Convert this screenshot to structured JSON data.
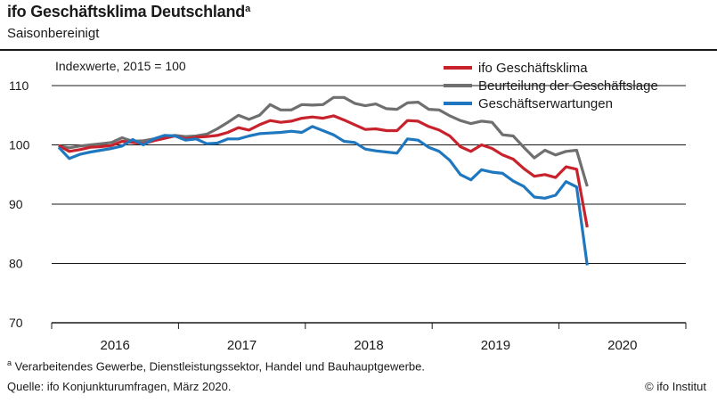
{
  "header": {
    "title": "ifo Geschäftsklima Deutschland",
    "title_sup": "a",
    "subtitle": "Saisonbereinigt"
  },
  "footer": {
    "footnote_sup": "a",
    "footnote": " Verarbeitendes Gewerbe, Dienstleistungssektor, Handel und Bauhauptgewerbe.",
    "source": "Quelle: ifo Konjunkturumfragen, März 2020.",
    "copyright": "© ifo Institut"
  },
  "chart_data": {
    "type": "line",
    "title": "ifo Geschäftsklima Deutschland",
    "subtitle": "Saisonbereinigt",
    "annotation": "Indexwerte, 2015 = 100",
    "ylim": [
      70,
      110
    ],
    "yticks": [
      70,
      80,
      90,
      100,
      110
    ],
    "grid": true,
    "legend_position": "top-right",
    "x_start": "2016-01",
    "x_end": "2020-12",
    "year_labels": [
      "2016",
      "2017",
      "2018",
      "2019",
      "2020"
    ],
    "x": [
      "2016-01",
      "2016-02",
      "2016-03",
      "2016-04",
      "2016-05",
      "2016-06",
      "2016-07",
      "2016-08",
      "2016-09",
      "2016-10",
      "2016-11",
      "2016-12",
      "2017-01",
      "2017-02",
      "2017-03",
      "2017-04",
      "2017-05",
      "2017-06",
      "2017-07",
      "2017-08",
      "2017-09",
      "2017-10",
      "2017-11",
      "2017-12",
      "2018-01",
      "2018-02",
      "2018-03",
      "2018-04",
      "2018-05",
      "2018-06",
      "2018-07",
      "2018-08",
      "2018-09",
      "2018-10",
      "2018-11",
      "2018-12",
      "2019-01",
      "2019-02",
      "2019-03",
      "2019-04",
      "2019-05",
      "2019-06",
      "2019-07",
      "2019-08",
      "2019-09",
      "2019-10",
      "2019-11",
      "2019-12",
      "2020-01",
      "2020-02",
      "2020-03"
    ],
    "series": [
      {
        "name": "ifo Geschäftsklima",
        "color": "#c8222c",
        "values": [
          99.9,
          98.9,
          99.2,
          99.6,
          99.7,
          99.9,
          100.6,
          100.4,
          100.2,
          100.7,
          101.1,
          101.5,
          101.0,
          101.3,
          101.4,
          101.6,
          102.1,
          102.9,
          102.5,
          103.4,
          104.1,
          103.8,
          104.0,
          104.5,
          104.7,
          104.5,
          104.9,
          104.2,
          103.4,
          102.6,
          102.7,
          102.4,
          102.4,
          104.1,
          104.0,
          103.1,
          102.5,
          101.5,
          99.7,
          98.9,
          100.0,
          99.4,
          98.3,
          97.6,
          96.0,
          94.7,
          95.0,
          94.5,
          96.3,
          95.9,
          86.1
        ]
      },
      {
        "name": "Beurteilung der Geschäftslage",
        "color": "#6f6f6f",
        "values": [
          99.8,
          99.5,
          99.8,
          100.0,
          100.2,
          100.4,
          101.2,
          100.6,
          100.7,
          101.0,
          101.4,
          101.6,
          101.4,
          101.5,
          101.8,
          102.7,
          103.8,
          105.0,
          104.3,
          105.0,
          106.8,
          105.9,
          105.9,
          106.8,
          106.7,
          106.8,
          108.0,
          108.0,
          107.0,
          106.6,
          106.9,
          106.1,
          106.0,
          107.1,
          107.2,
          106.0,
          105.9,
          104.9,
          104.1,
          103.6,
          104.0,
          103.8,
          101.7,
          101.5,
          99.6,
          97.8,
          99.1,
          98.3,
          98.9,
          99.1,
          93.0
        ]
      },
      {
        "name": "Geschäftserwartungen",
        "color": "#1f78bf",
        "values": [
          99.6,
          97.7,
          98.4,
          98.8,
          99.1,
          99.4,
          99.8,
          100.9,
          100.0,
          101.0,
          101.6,
          101.5,
          100.8,
          101.0,
          100.2,
          100.3,
          101.0,
          101.0,
          101.5,
          101.9,
          102.0,
          102.1,
          102.3,
          102.1,
          103.1,
          102.4,
          101.7,
          100.6,
          100.4,
          99.3,
          99.0,
          98.8,
          98.6,
          101.0,
          100.8,
          99.6,
          98.9,
          97.4,
          95.0,
          94.1,
          95.8,
          95.4,
          95.2,
          93.9,
          93.0,
          91.2,
          91.0,
          91.5,
          93.8,
          92.9,
          79.7
        ]
      }
    ]
  }
}
